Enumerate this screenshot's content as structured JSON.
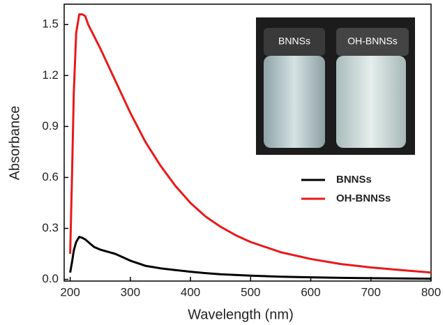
{
  "chart_data": {
    "type": "line",
    "x_label": "Wavelength (nm)",
    "y_label": "Absorbance",
    "x": [
      200,
      203,
      206,
      210,
      215,
      220,
      225,
      230,
      240,
      250,
      275,
      300,
      325,
      350,
      375,
      400,
      425,
      450,
      475,
      500,
      550,
      600,
      650,
      700,
      750,
      800
    ],
    "series": [
      {
        "name": "BNNSs",
        "color": "#000000",
        "values": [
          0.04,
          0.1,
          0.17,
          0.22,
          0.25,
          0.245,
          0.235,
          0.22,
          0.19,
          0.175,
          0.15,
          0.11,
          0.08,
          0.065,
          0.055,
          0.045,
          0.037,
          0.03,
          0.026,
          0.022,
          0.016,
          0.012,
          0.009,
          0.007,
          0.005,
          0.004
        ]
      },
      {
        "name": "OH-BNNSs",
        "color": "#e8191a",
        "values": [
          0.15,
          0.6,
          1.1,
          1.45,
          1.56,
          1.56,
          1.55,
          1.5,
          1.43,
          1.36,
          1.17,
          0.98,
          0.81,
          0.67,
          0.55,
          0.45,
          0.37,
          0.31,
          0.26,
          0.22,
          0.16,
          0.12,
          0.09,
          0.07,
          0.055,
          0.04
        ]
      }
    ],
    "xlim": [
      190,
      800
    ],
    "xticks": [
      200,
      300,
      400,
      500,
      600,
      700,
      800
    ],
    "ylim": [
      -0.01,
      1.62
    ],
    "yticks": [
      {
        "value": 0,
        "label": "0.0"
      },
      0.3,
      0.6,
      0.9,
      1.2,
      1.5
    ],
    "legend": "right",
    "inset": {
      "labels": [
        "BNNSs",
        "OH-BNNSs"
      ]
    }
  }
}
